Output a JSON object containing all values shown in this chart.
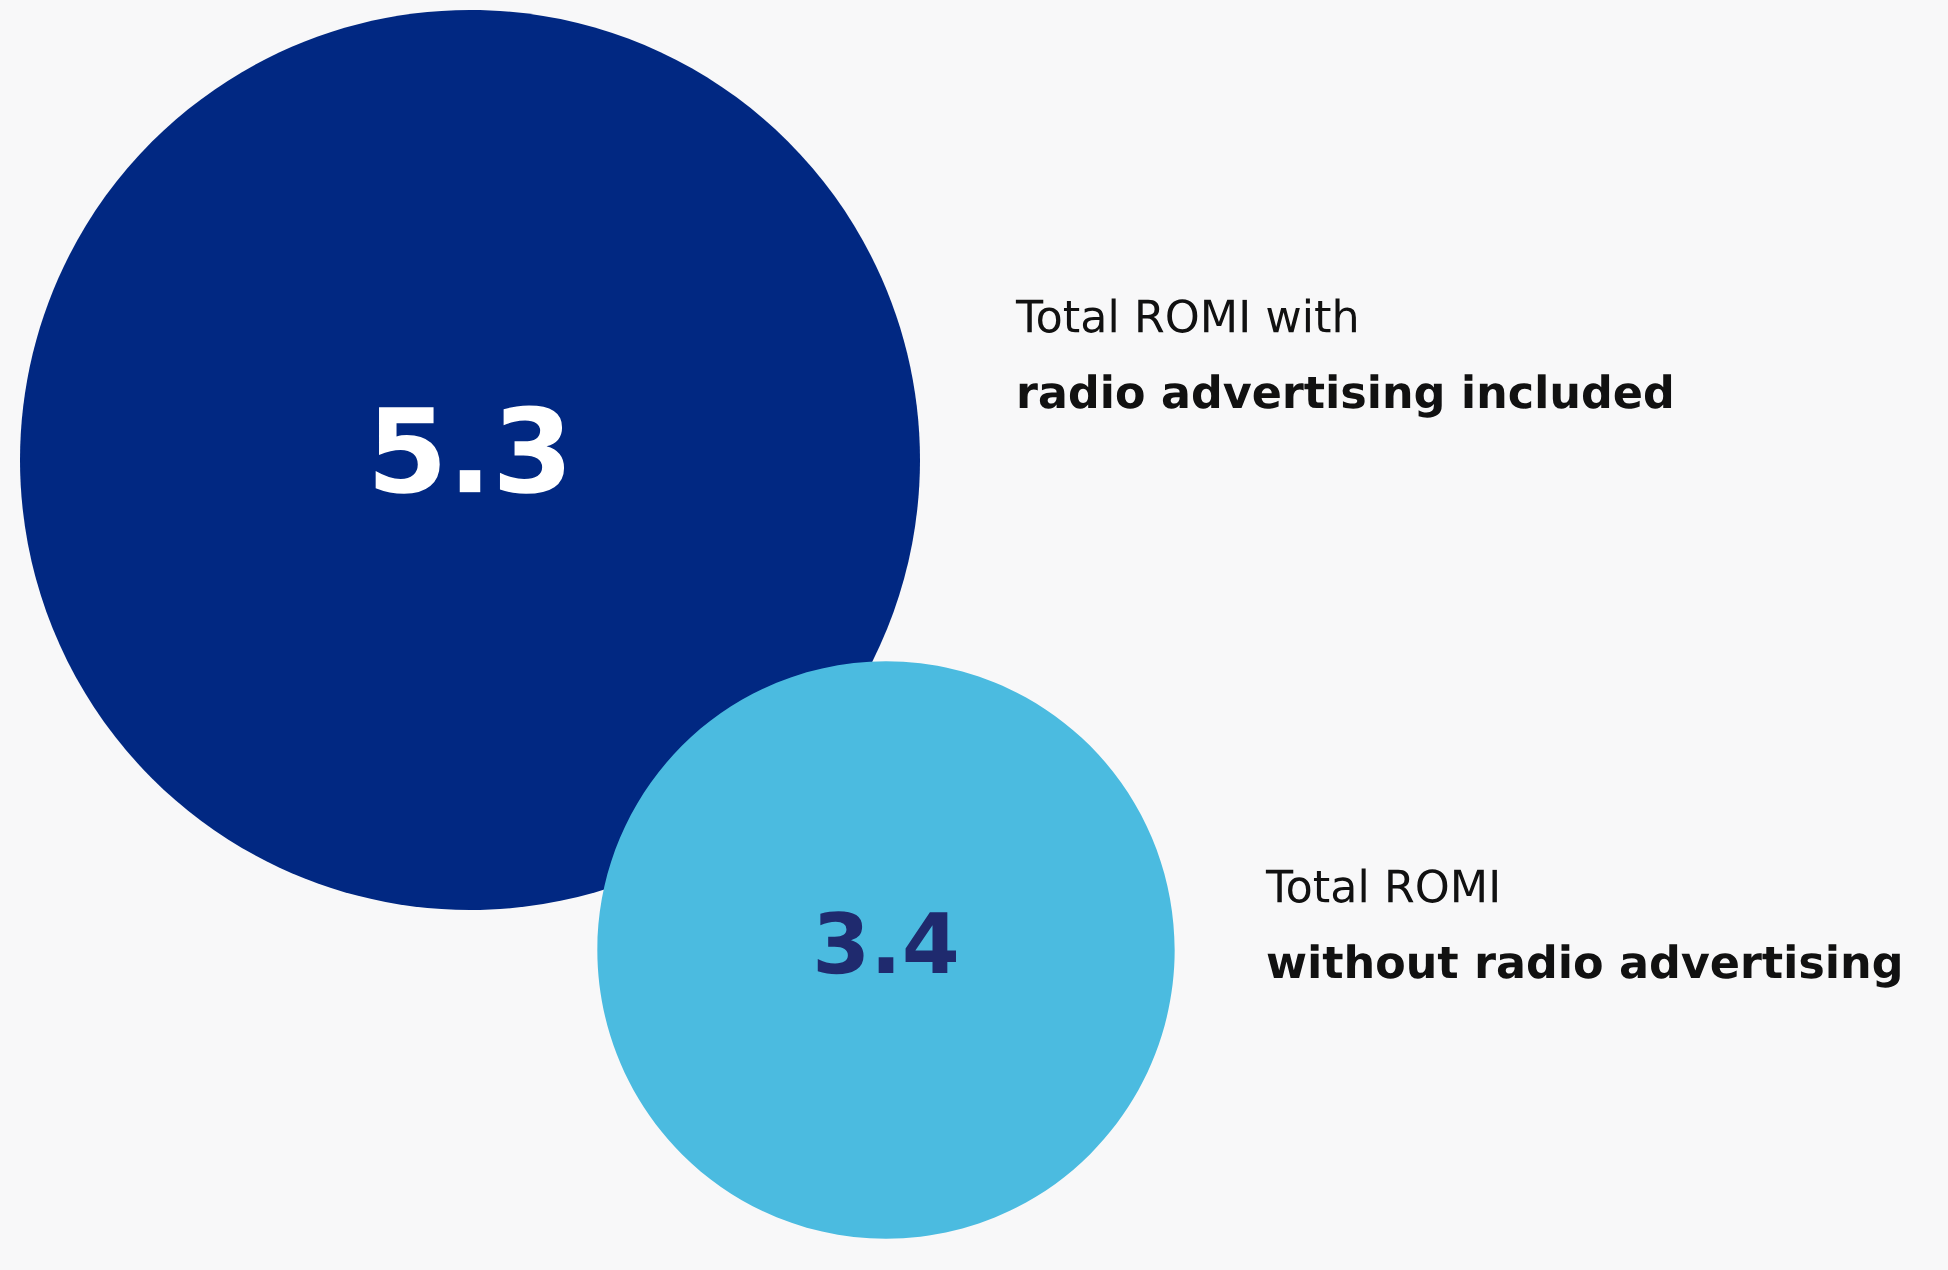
{
  "chart_data": {
    "type": "other",
    "categories": [
      "Total ROMI with\nradio advertising included",
      "Total ROMI\nwithout radio advertising"
    ],
    "values": [
      5.3,
      3.4
    ],
    "colors": [
      "#012882",
      "#4bbbe0"
    ],
    "data_labels": true
  }
}
